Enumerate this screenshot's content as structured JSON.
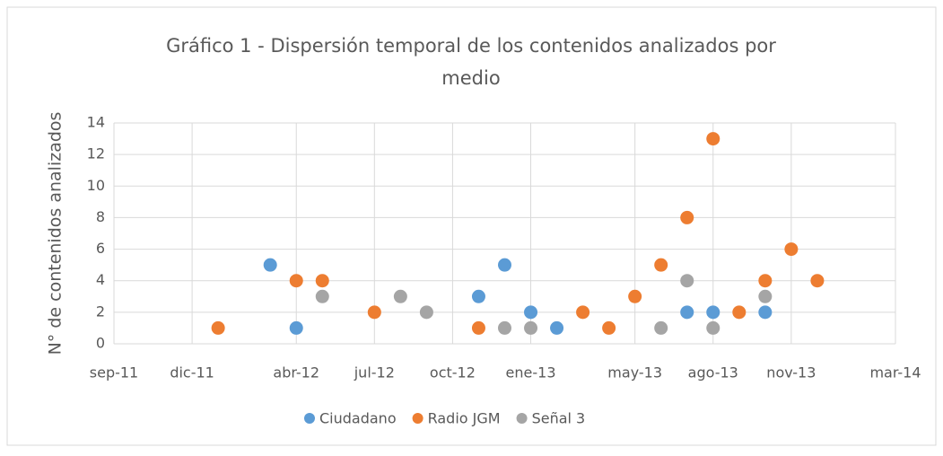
{
  "chart_data": {
    "type": "scatter",
    "title": "Gráfico 1 - Dispersión temporal de los contenidos analizados por medio",
    "y_label": "N° de contenidos analizados",
    "xlim": [
      "2011-09",
      "2014-03"
    ],
    "xticks": [
      {
        "value": "2011-09",
        "label": "sep-11"
      },
      {
        "value": "2011-12",
        "label": "dic-11"
      },
      {
        "value": "2012-04",
        "label": "abr-12"
      },
      {
        "value": "2012-07",
        "label": "jul-12"
      },
      {
        "value": "2012-10",
        "label": "oct-12"
      },
      {
        "value": "2013-01",
        "label": "ene-13"
      },
      {
        "value": "2013-05",
        "label": "may-13"
      },
      {
        "value": "2013-08",
        "label": "ago-13"
      },
      {
        "value": "2013-11",
        "label": "nov-13"
      },
      {
        "value": "2014-03",
        "label": "mar-14"
      }
    ],
    "ylim": [
      0,
      14
    ],
    "yticks": [
      0,
      2,
      4,
      6,
      8,
      10,
      12,
      14
    ],
    "grid": true,
    "legend": "bottom",
    "series": [
      {
        "name": "Ciudadano",
        "color": "#5b9bd5",
        "x": [
          "2012-03",
          "2012-04",
          "2012-11",
          "2012-12",
          "2013-01",
          "2013-02",
          "2013-07",
          "2013-08",
          "2013-10"
        ],
        "values": [
          5,
          1,
          3,
          5,
          2,
          1,
          2,
          2,
          2
        ]
      },
      {
        "name": "Radio JGM",
        "color": "#ed7d31",
        "x": [
          "2012-01",
          "2012-04",
          "2012-05",
          "2012-07",
          "2012-11",
          "2013-03",
          "2013-04",
          "2013-05",
          "2013-06",
          "2013-07",
          "2013-08",
          "2013-09",
          "2013-10",
          "2013-11",
          "2013-12"
        ],
        "values": [
          1,
          4,
          4,
          2,
          1,
          2,
          1,
          3,
          5,
          8,
          13,
          2,
          4,
          6,
          4
        ]
      },
      {
        "name": "Señal 3",
        "color": "#a5a5a5",
        "x": [
          "2012-05",
          "2012-08",
          "2012-09",
          "2012-12",
          "2013-01",
          "2013-06",
          "2013-07",
          "2013-08",
          "2013-10"
        ],
        "values": [
          3,
          3,
          2,
          1,
          1,
          1,
          4,
          1,
          3
        ]
      }
    ]
  }
}
